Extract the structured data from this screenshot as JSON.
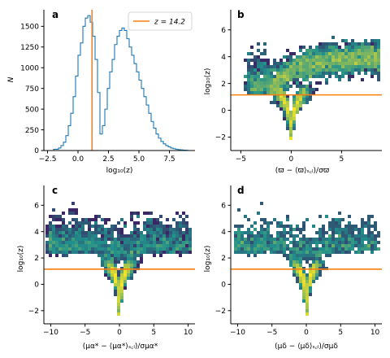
{
  "colors": {
    "histogram": "#1f77b4",
    "threshold": "#ff7f0e",
    "density_low": "#440154",
    "density_mid": "#21918c",
    "density_high": "#fde725"
  },
  "chart_data": [
    {
      "panel": "a",
      "type": "histogram",
      "xlabel": "log₁₀(z)",
      "ylabel": "N",
      "xlim": [
        -2.8,
        9.6
      ],
      "ylim": [
        0,
        1700
      ],
      "xticks": [
        -2.5,
        0.0,
        2.5,
        5.0,
        7.5
      ],
      "xtick_labels": [
        "−2.5",
        "0.0",
        "2.5",
        "5.0",
        "7.5"
      ],
      "yticks": [
        0,
        250,
        500,
        750,
        1000,
        1250,
        1500
      ],
      "ytick_labels": [
        "0",
        "250",
        "500",
        "750",
        "1000",
        "1250",
        "1500"
      ],
      "threshold_x": 1.15,
      "legend": {
        "label": "z = 14.2",
        "placement": "top-right"
      },
      "bins": {
        "start": -2.0,
        "width": 0.2,
        "counts": [
          15,
          15,
          30,
          60,
          100,
          180,
          300,
          450,
          650,
          900,
          1150,
          1300,
          1500,
          1600,
          1630,
          1550,
          1380,
          1100,
          700,
          200,
          300,
          500,
          750,
          950,
          1100,
          1280,
          1380,
          1450,
          1480,
          1450,
          1350,
          1250,
          1150,
          1050,
          950,
          850,
          750,
          650,
          550,
          450,
          350,
          270,
          200,
          150,
          110,
          80,
          60,
          45,
          30,
          22,
          15,
          10,
          8,
          5,
          3
        ]
      }
    },
    {
      "panel": "b",
      "type": "density-scatter",
      "xlabel": "(ϖ − ⟨ϖ⟩ₛ꜀ₗ)/σϖ",
      "ylabel": "log₁₀(z)",
      "xlim": [
        -6,
        9
      ],
      "ylim": [
        -3,
        7.5
      ],
      "xticks": [
        -5,
        0,
        5
      ],
      "xtick_labels": [
        "−5",
        "0",
        "5"
      ],
      "yticks": [
        -2,
        0,
        2,
        4,
        6
      ],
      "ytick_labels": [
        "−2",
        "0",
        "2",
        "4",
        "6"
      ],
      "threshold_y": 1.15
    },
    {
      "panel": "c",
      "type": "density-scatter",
      "xlabel": "(μα* − ⟨μα*⟩ₛ꜀ₗ)/σμα*",
      "ylabel": "log₁₀(z)",
      "xlim": [
        -11,
        11
      ],
      "ylim": [
        -3,
        7.5
      ],
      "xticks": [
        -10,
        -5,
        0,
        5,
        10
      ],
      "xtick_labels": [
        "−10",
        "−5",
        "0",
        "5",
        "10"
      ],
      "yticks": [
        -2,
        0,
        2,
        4,
        6
      ],
      "ytick_labels": [
        "−2",
        "0",
        "2",
        "4",
        "6"
      ],
      "threshold_y": 1.15
    },
    {
      "panel": "d",
      "type": "density-scatter",
      "xlabel": "(μδ − ⟨μδ⟩ₛ꜀ₗ)/σμδ",
      "ylabel": "log₁₀(z)",
      "xlim": [
        -11,
        11
      ],
      "ylim": [
        -3,
        7.5
      ],
      "xticks": [
        -10,
        -5,
        0,
        5,
        10
      ],
      "xtick_labels": [
        "−10",
        "−5",
        "0",
        "5",
        "10"
      ],
      "yticks": [
        -2,
        0,
        2,
        4,
        6
      ],
      "ytick_labels": [
        "−2",
        "0",
        "2",
        "4",
        "6"
      ],
      "threshold_y": 1.15
    }
  ]
}
